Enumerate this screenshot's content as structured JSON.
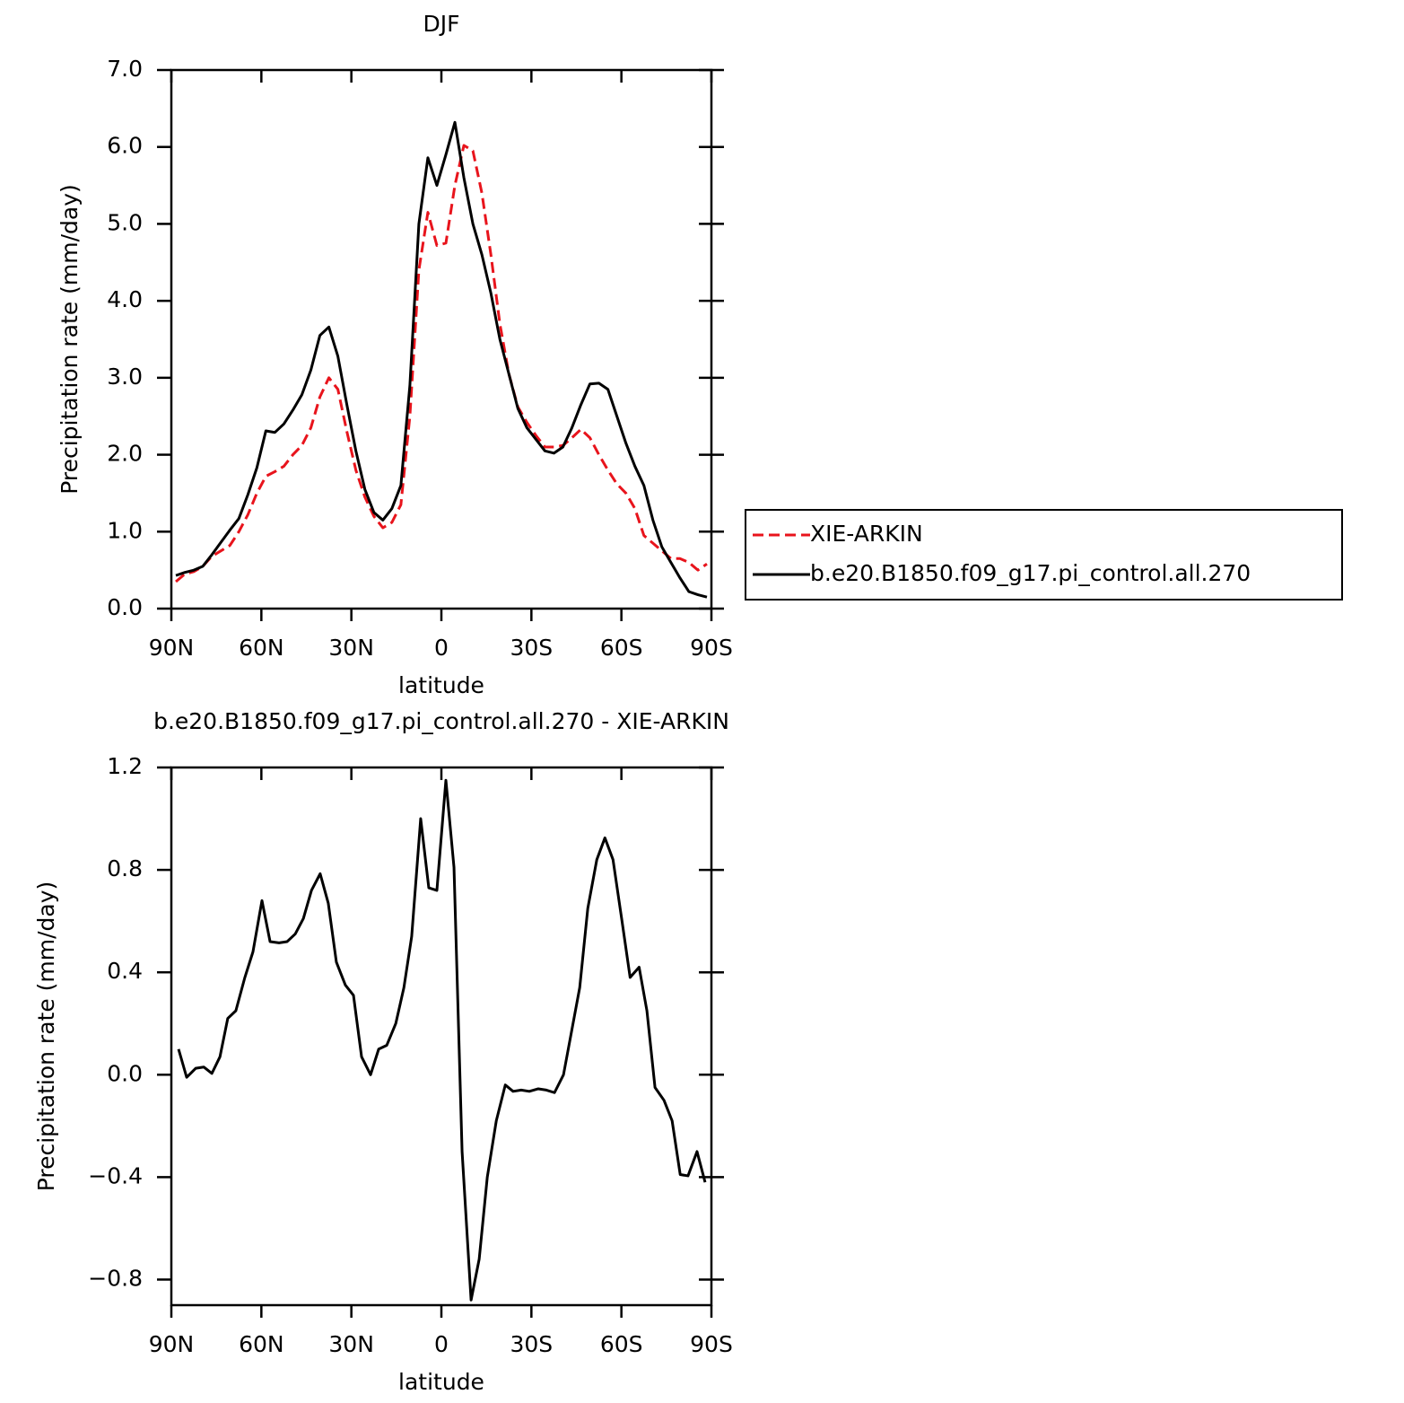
{
  "chart_data": [
    {
      "type": "line",
      "title": "DJF",
      "xlabel": "latitude",
      "ylabel": "Precipitation rate (mm/day)",
      "x": [
        88.5,
        85.5,
        82.5,
        79.5,
        76.5,
        73.5,
        70.5,
        67.5,
        64.5,
        61.5,
        58.5,
        55.5,
        52.5,
        49.5,
        46.5,
        43.5,
        40.5,
        37.5,
        34.5,
        31.5,
        28.5,
        25.5,
        22.5,
        19.5,
        16.5,
        13.5,
        10.5,
        7.5,
        4.5,
        1.5,
        -1.5,
        -4.5,
        -7.5,
        -10.5,
        -13.5,
        -16.5,
        -19.5,
        -22.5,
        -25.5,
        -28.5,
        -31.5,
        -34.5,
        -37.5,
        -40.5,
        -43.5,
        -46.5,
        -49.5,
        -52.5,
        -55.5,
        -58.5,
        -61.5,
        -64.5,
        -67.5,
        -70.5,
        -73.5,
        -76.5,
        -79.5,
        -82.5,
        -85.5,
        -88.5
      ],
      "series": [
        {
          "name": "XIE-ARKIN",
          "color": "#e8141c",
          "line_style": "dashed",
          "values": [
            0.35,
            0.45,
            0.48,
            0.55,
            0.68,
            0.75,
            0.82,
            1.0,
            1.22,
            1.5,
            1.72,
            1.78,
            1.85,
            2.0,
            2.12,
            2.35,
            2.75,
            3.0,
            2.85,
            2.3,
            1.8,
            1.45,
            1.2,
            1.05,
            1.12,
            1.35,
            2.5,
            4.4,
            5.15,
            4.72,
            4.75,
            5.5,
            6.02,
            5.95,
            5.4,
            4.6,
            3.7,
            3.05,
            2.62,
            2.42,
            2.25,
            2.1,
            2.1,
            2.12,
            2.22,
            2.33,
            2.22,
            2.0,
            1.8,
            1.62,
            1.5,
            1.3,
            0.95,
            0.85,
            0.75,
            0.65,
            0.65,
            0.6,
            0.5,
            0.58
          ]
        },
        {
          "name": "b.e20.B1850.f09_g17.pi_control.all.270",
          "color": "#000000",
          "line_style": "solid",
          "values": [
            0.43,
            0.47,
            0.5,
            0.55,
            0.7,
            0.86,
            1.02,
            1.17,
            1.48,
            1.83,
            2.31,
            2.29,
            2.4,
            2.58,
            2.78,
            3.1,
            3.55,
            3.66,
            3.28,
            2.65,
            2.05,
            1.55,
            1.25,
            1.15,
            1.3,
            1.6,
            2.9,
            5.0,
            5.86,
            5.5,
            5.9,
            6.32,
            5.6,
            5.0,
            4.6,
            4.1,
            3.5,
            3.05,
            2.6,
            2.35,
            2.2,
            2.05,
            2.02,
            2.1,
            2.35,
            2.65,
            2.92,
            2.93,
            2.85,
            2.5,
            2.15,
            1.85,
            1.6,
            1.15,
            0.8,
            0.6,
            0.4,
            0.22,
            0.18,
            0.15
          ]
        }
      ],
      "xlim": [
        90,
        -90
      ],
      "xticks": [
        {
          "value": 90,
          "label": "90N"
        },
        {
          "value": 60,
          "label": "60N"
        },
        {
          "value": 30,
          "label": "30N"
        },
        0,
        {
          "value": -30,
          "label": "30S"
        },
        {
          "value": -60,
          "label": "60S"
        },
        {
          "value": -90,
          "label": "90S"
        }
      ],
      "ylim": [
        0,
        7
      ],
      "yticks": [
        {
          "value": 0,
          "label": "0.0"
        },
        {
          "value": 1,
          "label": "1.0"
        },
        {
          "value": 2,
          "label": "2.0"
        },
        {
          "value": 3,
          "label": "3.0"
        },
        {
          "value": 4,
          "label": "4.0"
        },
        {
          "value": 5,
          "label": "5.0"
        },
        {
          "value": 6,
          "label": "6.0"
        },
        {
          "value": 7,
          "label": "7.0"
        }
      ],
      "legend": "right"
    },
    {
      "type": "line",
      "title": "b.e20.B1850.f09_g17.pi_control.all.270 - XIE-ARKIN",
      "xlabel": "latitude",
      "ylabel": "Precipitation rate (mm/day)",
      "x": [
        87.6,
        84.9,
        81.9,
        79.2,
        76.5,
        73.8,
        71.2,
        68.5,
        65.5,
        62.8,
        59.8,
        57.1,
        54.1,
        51.4,
        48.7,
        46.0,
        43.3,
        40.4,
        37.7,
        35.0,
        32.0,
        29.3,
        26.6,
        23.6,
        20.9,
        18.2,
        15.2,
        12.5,
        9.9,
        6.9,
        4.2,
        1.5,
        -1.5,
        -4.2,
        -6.9,
        -9.9,
        -12.6,
        -15.3,
        -18.3,
        -21.3,
        -23.9,
        -26.6,
        -29.3,
        -32.3,
        -35.0,
        -37.7,
        -40.7,
        -43.4,
        -46.1,
        -48.8,
        -51.8,
        -54.5,
        -57.2,
        -60.2,
        -62.9,
        -65.9,
        -68.5,
        -71.2,
        -74.2,
        -76.9,
        -79.6,
        -82.2,
        -85.2,
        -87.9
      ],
      "series": [
        {
          "color": "#000000",
          "line_style": "solid",
          "values": [
            0.1,
            -0.01,
            0.025,
            0.03,
            0.005,
            0.07,
            0.22,
            0.25,
            0.38,
            0.48,
            0.68,
            0.52,
            0.515,
            0.52,
            0.55,
            0.61,
            0.72,
            0.785,
            0.67,
            0.44,
            0.35,
            0.31,
            0.07,
            0.0,
            0.1,
            0.115,
            0.2,
            0.34,
            0.54,
            1.0,
            0.73,
            0.72,
            1.15,
            0.81,
            -0.3,
            -0.88,
            -0.72,
            -0.4,
            -0.18,
            -0.04,
            -0.065,
            -0.06,
            -0.065,
            -0.055,
            -0.06,
            -0.07,
            0.0,
            0.17,
            0.34,
            0.65,
            0.84,
            0.925,
            0.84,
            0.6,
            0.38,
            0.42,
            0.25,
            -0.05,
            -0.1,
            -0.18,
            -0.39,
            -0.395,
            -0.3,
            -0.42
          ]
        }
      ],
      "xlim": [
        90,
        -90
      ],
      "xticks": [
        {
          "value": 90,
          "label": "90N"
        },
        {
          "value": 60,
          "label": "60N"
        },
        {
          "value": 30,
          "label": "30N"
        },
        0,
        {
          "value": -30,
          "label": "30S"
        },
        {
          "value": -60,
          "label": "60S"
        },
        {
          "value": -90,
          "label": "90S"
        }
      ],
      "ylim": [
        -0.9,
        1.2
      ],
      "yticks": [
        {
          "value": -0.8,
          "label": "−0.8"
        },
        {
          "value": -0.4,
          "label": "−0.4"
        },
        {
          "value": 0,
          "label": "0.0"
        },
        0.4,
        0.8,
        1.2
      ]
    }
  ]
}
